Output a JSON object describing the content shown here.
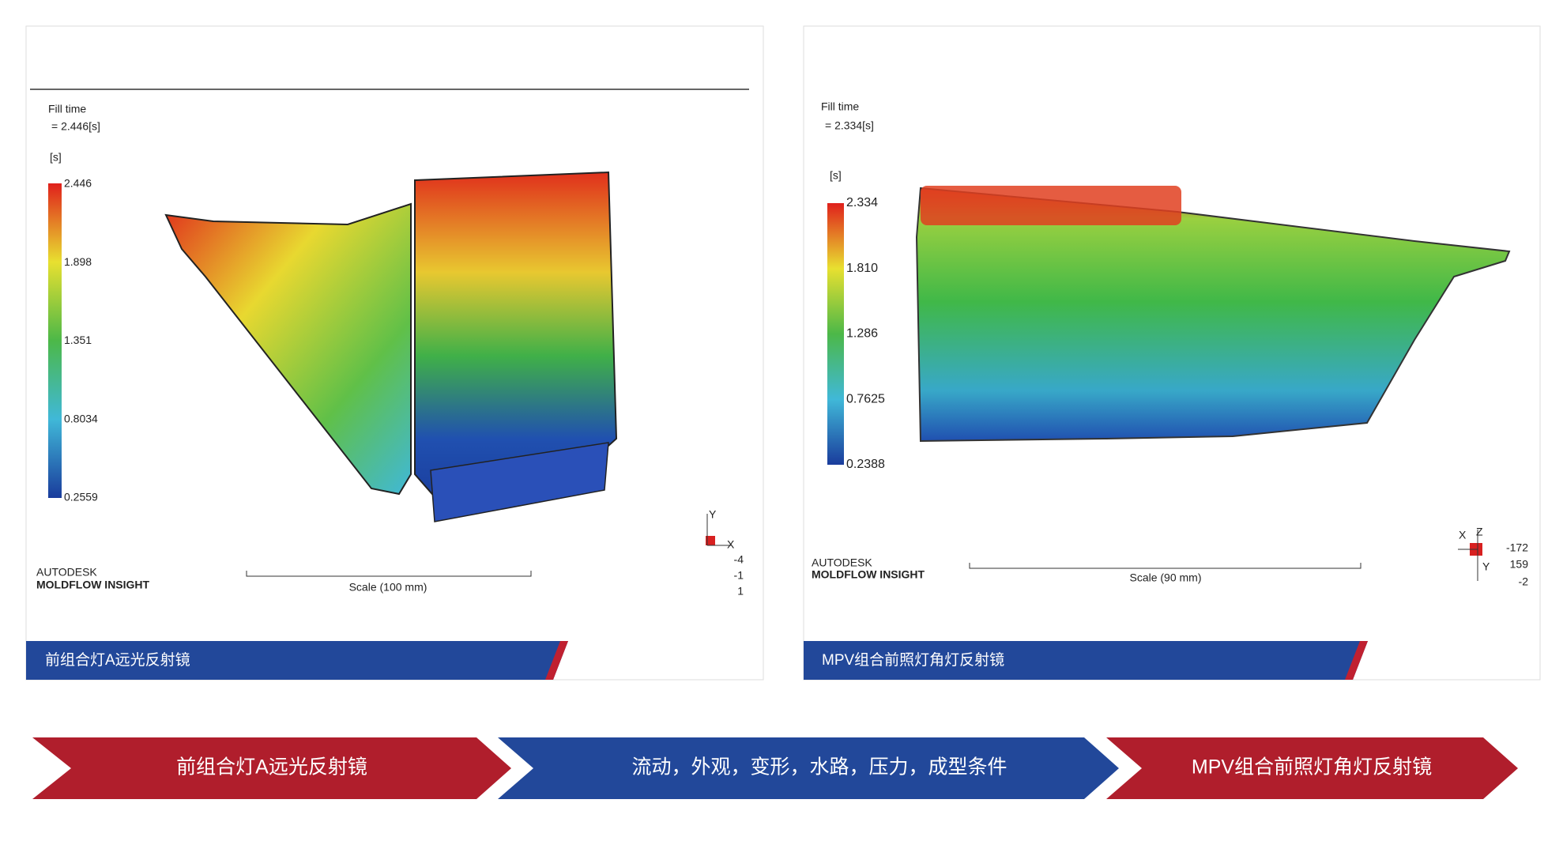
{
  "panels": [
    {
      "fill_label": "Fill time",
      "fill_value": "= 2.446[s]",
      "unit": "[s]",
      "legend": [
        "2.446",
        "1.898",
        "1.351",
        "0.8034",
        "0.2559"
      ],
      "brand": "AUTODESK",
      "product": "MOLDFLOW INSIGHT",
      "scale_bar": "Scale (100 mm)",
      "axes": [
        "Y",
        "X"
      ],
      "coords": [
        "-4",
        "-1",
        "1"
      ],
      "caption": "前组合灯A远光反射镜"
    },
    {
      "fill_label": "Fill time",
      "fill_value": "= 2.334[s]",
      "unit": "[s]",
      "legend": [
        "2.334",
        "1.810",
        "1.286",
        "0.7625",
        "0.2388"
      ],
      "brand": "AUTODESK",
      "product": "MOLDFLOW INSIGHT",
      "scale_bar": "Scale (90 mm)",
      "axes": [
        "X",
        "Z",
        "Y"
      ],
      "coords": [
        "-172",
        "159",
        "-2"
      ],
      "caption": "MPV组合前照灯角灯反射镜"
    }
  ],
  "flow": [
    "前组合灯A远光反射镜",
    "流动，外观，变形，水路，压力，成型条件",
    "MPV组合前照灯角灯反射镜"
  ]
}
